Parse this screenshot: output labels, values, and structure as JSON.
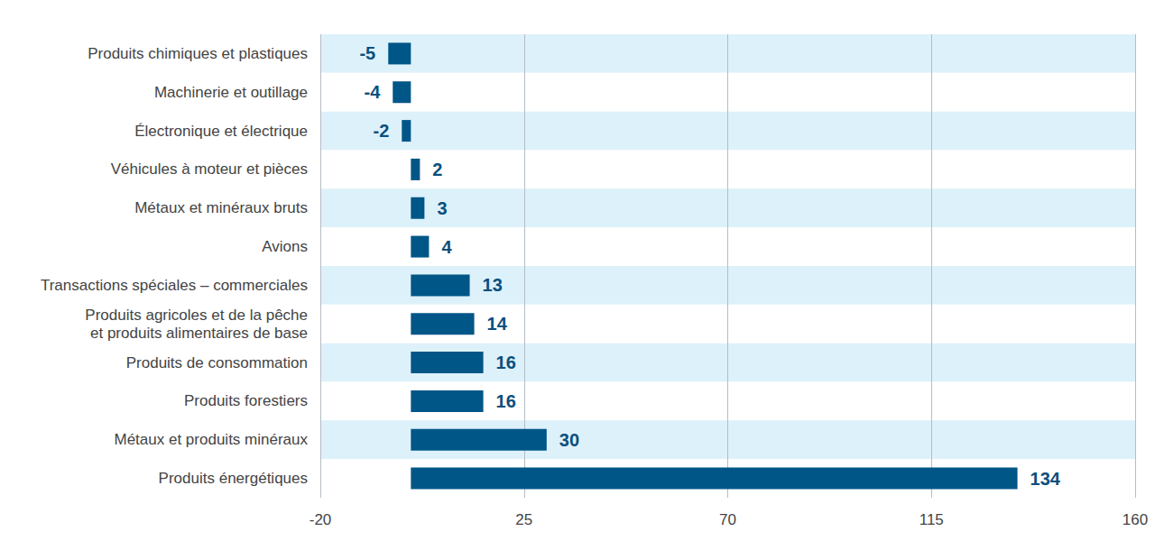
{
  "chart_data": {
    "type": "bar",
    "orientation": "horizontal",
    "categories": [
      "Produits chimiques et plastiques",
      "Machinerie et outillage",
      "Électronique et électrique",
      "Véhicules à moteur et pièces",
      "Métaux et minéraux bruts",
      "Avions",
      "Transactions spéciales – commerciales",
      "Produits agricoles et de la pêche\net produits alimentaires de base",
      "Produits de consommation",
      "Produits forestiers",
      "Métaux et produits minéraux",
      "Produits énergétiques"
    ],
    "values": [
      -5,
      -4,
      -2,
      2,
      3,
      4,
      13,
      14,
      16,
      16,
      30,
      134
    ],
    "color": "#005687",
    "xlim": [
      -20,
      160
    ],
    "xticks": [
      -20,
      25,
      70,
      115,
      160
    ],
    "grid": true,
    "data_labels": true
  }
}
